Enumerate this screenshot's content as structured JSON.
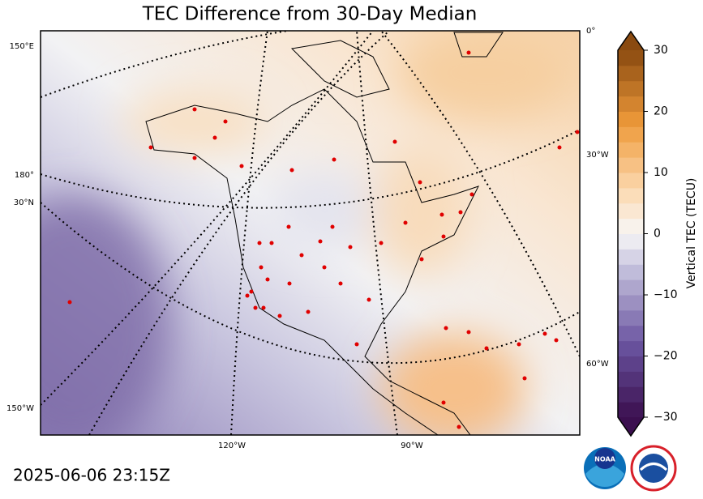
{
  "title": "TEC Difference from 30-Day Median",
  "colorbar": {
    "label": "Vertical TEC (TECU)",
    "lim": [
      -30,
      30
    ],
    "ticks": [
      {
        "value": -30,
        "label": "−30"
      },
      {
        "value": -20,
        "label": "−20"
      },
      {
        "value": -10,
        "label": "−10"
      },
      0,
      10,
      20,
      30
    ]
  },
  "map_labels": {
    "lon_left_top": "150°E",
    "lon_left_mid": "180°",
    "lat_left": "30°N",
    "lon_left_bottom": "150°W",
    "lon_bottom_1": "120°W",
    "lon_bottom_2": "90°W",
    "lon_right_top": "0°",
    "lon_right_mid": "30°W",
    "lon_right_bottom": "60°W"
  },
  "timestamp": "2025-06-06 23:15Z",
  "logo": "NOAA"
}
